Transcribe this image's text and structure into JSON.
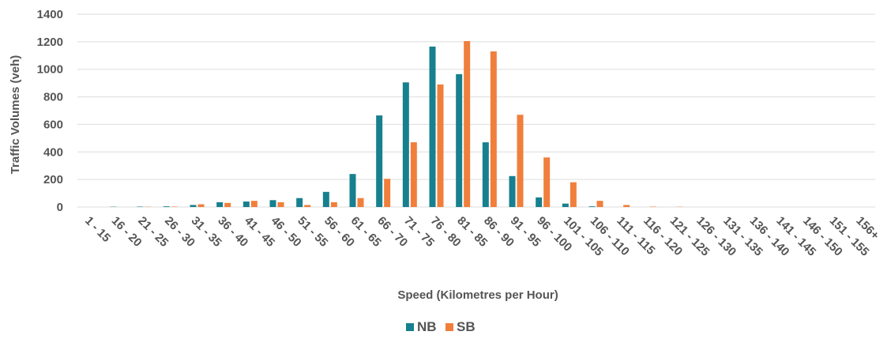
{
  "chart_data": {
    "type": "bar",
    "title": "",
    "xlabel": "Speed (Kilometres per Hour)",
    "ylabel": "Traffic Volumes (veh)",
    "ylim": [
      0,
      1400
    ],
    "yticks": [
      0,
      200,
      400,
      600,
      800,
      1000,
      1200,
      1400
    ],
    "grid": true,
    "legend_position": "bottom",
    "categories": [
      "1 - 15",
      "16 - 20",
      "21 - 25",
      "26 - 30",
      "31 - 35",
      "36 - 40",
      "41 - 45",
      "46 - 50",
      "51 - 55",
      "56 - 60",
      "61 - 65",
      "66 - 70",
      "71 - 75",
      "76 - 80",
      "81 - 85",
      "86 - 90",
      "91 - 95",
      "96 - 100",
      "101 - 105",
      "106 - 110",
      "111 - 115",
      "116 - 120",
      "121 - 125",
      "126 - 130",
      "131 - 135",
      "136 - 140",
      "141 - 145",
      "146 - 150",
      "151 - 155",
      "156+"
    ],
    "series": [
      {
        "name": "NB",
        "color": "#17808e",
        "values": [
          0,
          2,
          3,
          5,
          15,
          35,
          40,
          50,
          65,
          110,
          240,
          665,
          905,
          1165,
          965,
          470,
          225,
          70,
          25,
          5,
          0,
          0,
          0,
          0,
          0,
          0,
          0,
          0,
          0,
          0
        ]
      },
      {
        "name": "SB",
        "color": "#f07f3c",
        "values": [
          0,
          0,
          2,
          3,
          20,
          30,
          45,
          35,
          15,
          35,
          65,
          205,
          470,
          890,
          1205,
          1130,
          670,
          360,
          180,
          45,
          15,
          3,
          2,
          0,
          0,
          0,
          0,
          0,
          0,
          0
        ]
      }
    ]
  }
}
